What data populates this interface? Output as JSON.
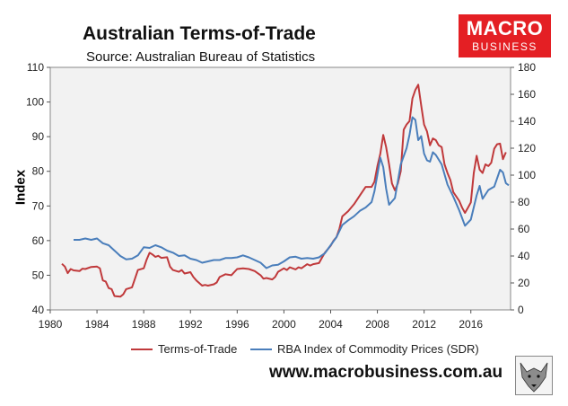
{
  "header": {
    "title": "Australian Terms-of-Trade",
    "subtitle": "Source: Australian Bureau of Statistics"
  },
  "logo": {
    "line1": "MACRO",
    "line2": "BUSINESS",
    "color": "#e41f24"
  },
  "footer": {
    "website": "www.macrobusiness.com.au"
  },
  "chart_data": {
    "type": "line",
    "ylabel": "Index",
    "xlim": [
      1980,
      2019.4
    ],
    "ylim_left": [
      40,
      110
    ],
    "ylim_right": [
      0,
      180
    ],
    "x_ticks": [
      "1980",
      "1984",
      "1988",
      "1992",
      "1996",
      "2000",
      "2004",
      "2008",
      "2012",
      "2016"
    ],
    "x_tick_values": [
      1980,
      1984,
      1988,
      1992,
      1996,
      2000,
      2004,
      2008,
      2012,
      2016
    ],
    "y_ticks_left": [
      "40",
      "50",
      "60",
      "70",
      "80",
      "90",
      "100",
      "110"
    ],
    "y_ticks_right": [
      "0",
      "20",
      "40",
      "60",
      "80",
      "100",
      "120",
      "140",
      "160",
      "180"
    ],
    "grid": false,
    "legend_position": "bottom",
    "series": [
      {
        "name": "Terms-of-Trade",
        "axis": "left",
        "color": "#c0393b",
        "points": [
          [
            1981.0,
            53.3
          ],
          [
            1981.25,
            52.5
          ],
          [
            1981.5,
            50.6
          ],
          [
            1981.75,
            51.8
          ],
          [
            1982.0,
            51.4
          ],
          [
            1982.5,
            51.2
          ],
          [
            1982.75,
            51.9
          ],
          [
            1983.0,
            51.8
          ],
          [
            1983.5,
            52.4
          ],
          [
            1984.0,
            52.5
          ],
          [
            1984.25,
            52.0
          ],
          [
            1984.5,
            48.5
          ],
          [
            1984.75,
            48.2
          ],
          [
            1985.0,
            46.3
          ],
          [
            1985.25,
            46.0
          ],
          [
            1985.5,
            44.0
          ],
          [
            1986.0,
            43.8
          ],
          [
            1986.25,
            44.5
          ],
          [
            1986.5,
            46.0
          ],
          [
            1987.0,
            46.5
          ],
          [
            1987.25,
            49.0
          ],
          [
            1987.5,
            51.5
          ],
          [
            1988.0,
            52.0
          ],
          [
            1988.25,
            54.5
          ],
          [
            1988.5,
            56.5
          ],
          [
            1988.75,
            56.0
          ],
          [
            1989.0,
            55.3
          ],
          [
            1989.25,
            55.6
          ],
          [
            1989.5,
            55.0
          ],
          [
            1990.0,
            55.2
          ],
          [
            1990.25,
            52.5
          ],
          [
            1990.5,
            51.5
          ],
          [
            1991.0,
            51.0
          ],
          [
            1991.25,
            51.5
          ],
          [
            1991.5,
            50.5
          ],
          [
            1992.0,
            50.9
          ],
          [
            1992.25,
            49.5
          ],
          [
            1992.5,
            48.5
          ],
          [
            1993.0,
            47.0
          ],
          [
            1993.25,
            47.2
          ],
          [
            1993.5,
            47.0
          ],
          [
            1994.0,
            47.4
          ],
          [
            1994.25,
            47.9
          ],
          [
            1994.5,
            49.5
          ],
          [
            1995.0,
            50.3
          ],
          [
            1995.5,
            50.0
          ],
          [
            1996.0,
            51.8
          ],
          [
            1996.5,
            52.0
          ],
          [
            1997.0,
            51.8
          ],
          [
            1997.5,
            51.2
          ],
          [
            1998.0,
            50.0
          ],
          [
            1998.25,
            49.0
          ],
          [
            1998.5,
            49.2
          ],
          [
            1999.0,
            48.8
          ],
          [
            1999.25,
            49.5
          ],
          [
            1999.5,
            51.0
          ],
          [
            2000.0,
            52.0
          ],
          [
            2000.25,
            51.5
          ],
          [
            2000.5,
            52.3
          ],
          [
            2001.0,
            51.7
          ],
          [
            2001.25,
            52.3
          ],
          [
            2001.5,
            52.0
          ],
          [
            2002.0,
            53.2
          ],
          [
            2002.25,
            52.8
          ],
          [
            2002.5,
            53.2
          ],
          [
            2003.0,
            53.5
          ],
          [
            2003.25,
            55.0
          ],
          [
            2003.5,
            56.5
          ],
          [
            2004.0,
            58.5
          ],
          [
            2004.25,
            60.0
          ],
          [
            2004.5,
            61.0
          ],
          [
            2004.75,
            63.5
          ],
          [
            2005.0,
            67.0
          ],
          [
            2005.5,
            68.5
          ],
          [
            2006.0,
            70.5
          ],
          [
            2006.5,
            73.0
          ],
          [
            2007.0,
            75.5
          ],
          [
            2007.5,
            75.5
          ],
          [
            2007.75,
            77.0
          ],
          [
            2008.0,
            81.5
          ],
          [
            2008.25,
            85.0
          ],
          [
            2008.5,
            90.5
          ],
          [
            2008.75,
            87.0
          ],
          [
            2009.0,
            82.0
          ],
          [
            2009.25,
            76.5
          ],
          [
            2009.5,
            74.5
          ],
          [
            2009.75,
            76.5
          ],
          [
            2010.0,
            80.0
          ],
          [
            2010.25,
            92.0
          ],
          [
            2010.5,
            93.5
          ],
          [
            2010.75,
            94.5
          ],
          [
            2011.0,
            101.0
          ],
          [
            2011.25,
            103.5
          ],
          [
            2011.5,
            105.0
          ],
          [
            2011.75,
            99.0
          ],
          [
            2012.0,
            93.5
          ],
          [
            2012.25,
            91.5
          ],
          [
            2012.5,
            87.5
          ],
          [
            2012.75,
            89.5
          ],
          [
            2013.0,
            89.0
          ],
          [
            2013.25,
            87.5
          ],
          [
            2013.5,
            87.0
          ],
          [
            2013.75,
            82.0
          ],
          [
            2014.0,
            79.5
          ],
          [
            2014.25,
            77.5
          ],
          [
            2014.5,
            74.0
          ],
          [
            2015.0,
            71.5
          ],
          [
            2015.25,
            69.5
          ],
          [
            2015.5,
            68.0
          ],
          [
            2015.75,
            69.5
          ],
          [
            2016.0,
            71.0
          ],
          [
            2016.25,
            79.5
          ],
          [
            2016.5,
            84.5
          ],
          [
            2016.75,
            80.5
          ],
          [
            2017.0,
            79.5
          ],
          [
            2017.25,
            82.0
          ],
          [
            2017.5,
            81.5
          ],
          [
            2017.75,
            82.5
          ],
          [
            2018.0,
            86.5
          ],
          [
            2018.25,
            87.8
          ],
          [
            2018.5,
            88.0
          ],
          [
            2018.75,
            83.5
          ],
          [
            2019.0,
            85.5
          ]
        ]
      },
      {
        "name": "RBA Index of Commodity Prices (SDR)",
        "axis": "right",
        "color": "#4a7ebb",
        "points": [
          [
            1982.0,
            52.0
          ],
          [
            1982.5,
            52.0
          ],
          [
            1983.0,
            53.0
          ],
          [
            1983.5,
            52.0
          ],
          [
            1984.0,
            53.0
          ],
          [
            1984.5,
            49.5
          ],
          [
            1985.0,
            48.0
          ],
          [
            1985.5,
            44.0
          ],
          [
            1986.0,
            40.0
          ],
          [
            1986.5,
            37.5
          ],
          [
            1987.0,
            38.0
          ],
          [
            1987.5,
            40.5
          ],
          [
            1988.0,
            46.5
          ],
          [
            1988.5,
            46.0
          ],
          [
            1989.0,
            48.0
          ],
          [
            1989.5,
            46.5
          ],
          [
            1990.0,
            44.0
          ],
          [
            1990.5,
            42.5
          ],
          [
            1991.0,
            40.0
          ],
          [
            1991.5,
            40.5
          ],
          [
            1992.0,
            38.0
          ],
          [
            1992.5,
            37.0
          ],
          [
            1993.0,
            35.0
          ],
          [
            1993.5,
            36.0
          ],
          [
            1994.0,
            37.0
          ],
          [
            1994.5,
            37.0
          ],
          [
            1995.0,
            38.5
          ],
          [
            1995.5,
            38.5
          ],
          [
            1996.0,
            39.0
          ],
          [
            1996.5,
            40.5
          ],
          [
            1997.0,
            39.0
          ],
          [
            1997.5,
            37.0
          ],
          [
            1998.0,
            35.0
          ],
          [
            1998.5,
            31.0
          ],
          [
            1999.0,
            33.0
          ],
          [
            1999.5,
            33.5
          ],
          [
            2000.0,
            36.0
          ],
          [
            2000.5,
            39.0
          ],
          [
            2001.0,
            39.5
          ],
          [
            2001.5,
            38.0
          ],
          [
            2002.0,
            38.5
          ],
          [
            2002.5,
            38.0
          ],
          [
            2003.0,
            39.0
          ],
          [
            2003.5,
            42.0
          ],
          [
            2004.0,
            48.0
          ],
          [
            2004.5,
            54.0
          ],
          [
            2005.0,
            63.0
          ],
          [
            2005.5,
            66.5
          ],
          [
            2006.0,
            69.5
          ],
          [
            2006.5,
            73.5
          ],
          [
            2007.0,
            76.0
          ],
          [
            2007.5,
            80.0
          ],
          [
            2007.75,
            88.0
          ],
          [
            2008.0,
            100.5
          ],
          [
            2008.25,
            113.0
          ],
          [
            2008.5,
            106.0
          ],
          [
            2008.75,
            90.0
          ],
          [
            2009.0,
            78.0
          ],
          [
            2009.5,
            83.0
          ],
          [
            2010.0,
            108.0
          ],
          [
            2010.5,
            120.0
          ],
          [
            2010.75,
            130.0
          ],
          [
            2011.0,
            143.0
          ],
          [
            2011.25,
            141.0
          ],
          [
            2011.5,
            126.0
          ],
          [
            2011.75,
            129.0
          ],
          [
            2012.0,
            116.0
          ],
          [
            2012.25,
            111.0
          ],
          [
            2012.5,
            110.0
          ],
          [
            2012.75,
            117.0
          ],
          [
            2013.0,
            115.0
          ],
          [
            2013.5,
            108.0
          ],
          [
            2014.0,
            93.0
          ],
          [
            2014.5,
            84.0
          ],
          [
            2015.0,
            74.0
          ],
          [
            2015.5,
            62.5
          ],
          [
            2016.0,
            67.0
          ],
          [
            2016.5,
            85.0
          ],
          [
            2016.75,
            92.0
          ],
          [
            2017.0,
            82.5
          ],
          [
            2017.5,
            89.0
          ],
          [
            2018.0,
            91.5
          ],
          [
            2018.5,
            104.0
          ],
          [
            2018.75,
            102.0
          ],
          [
            2019.0,
            94.0
          ],
          [
            2019.25,
            92.5
          ]
        ]
      }
    ]
  }
}
